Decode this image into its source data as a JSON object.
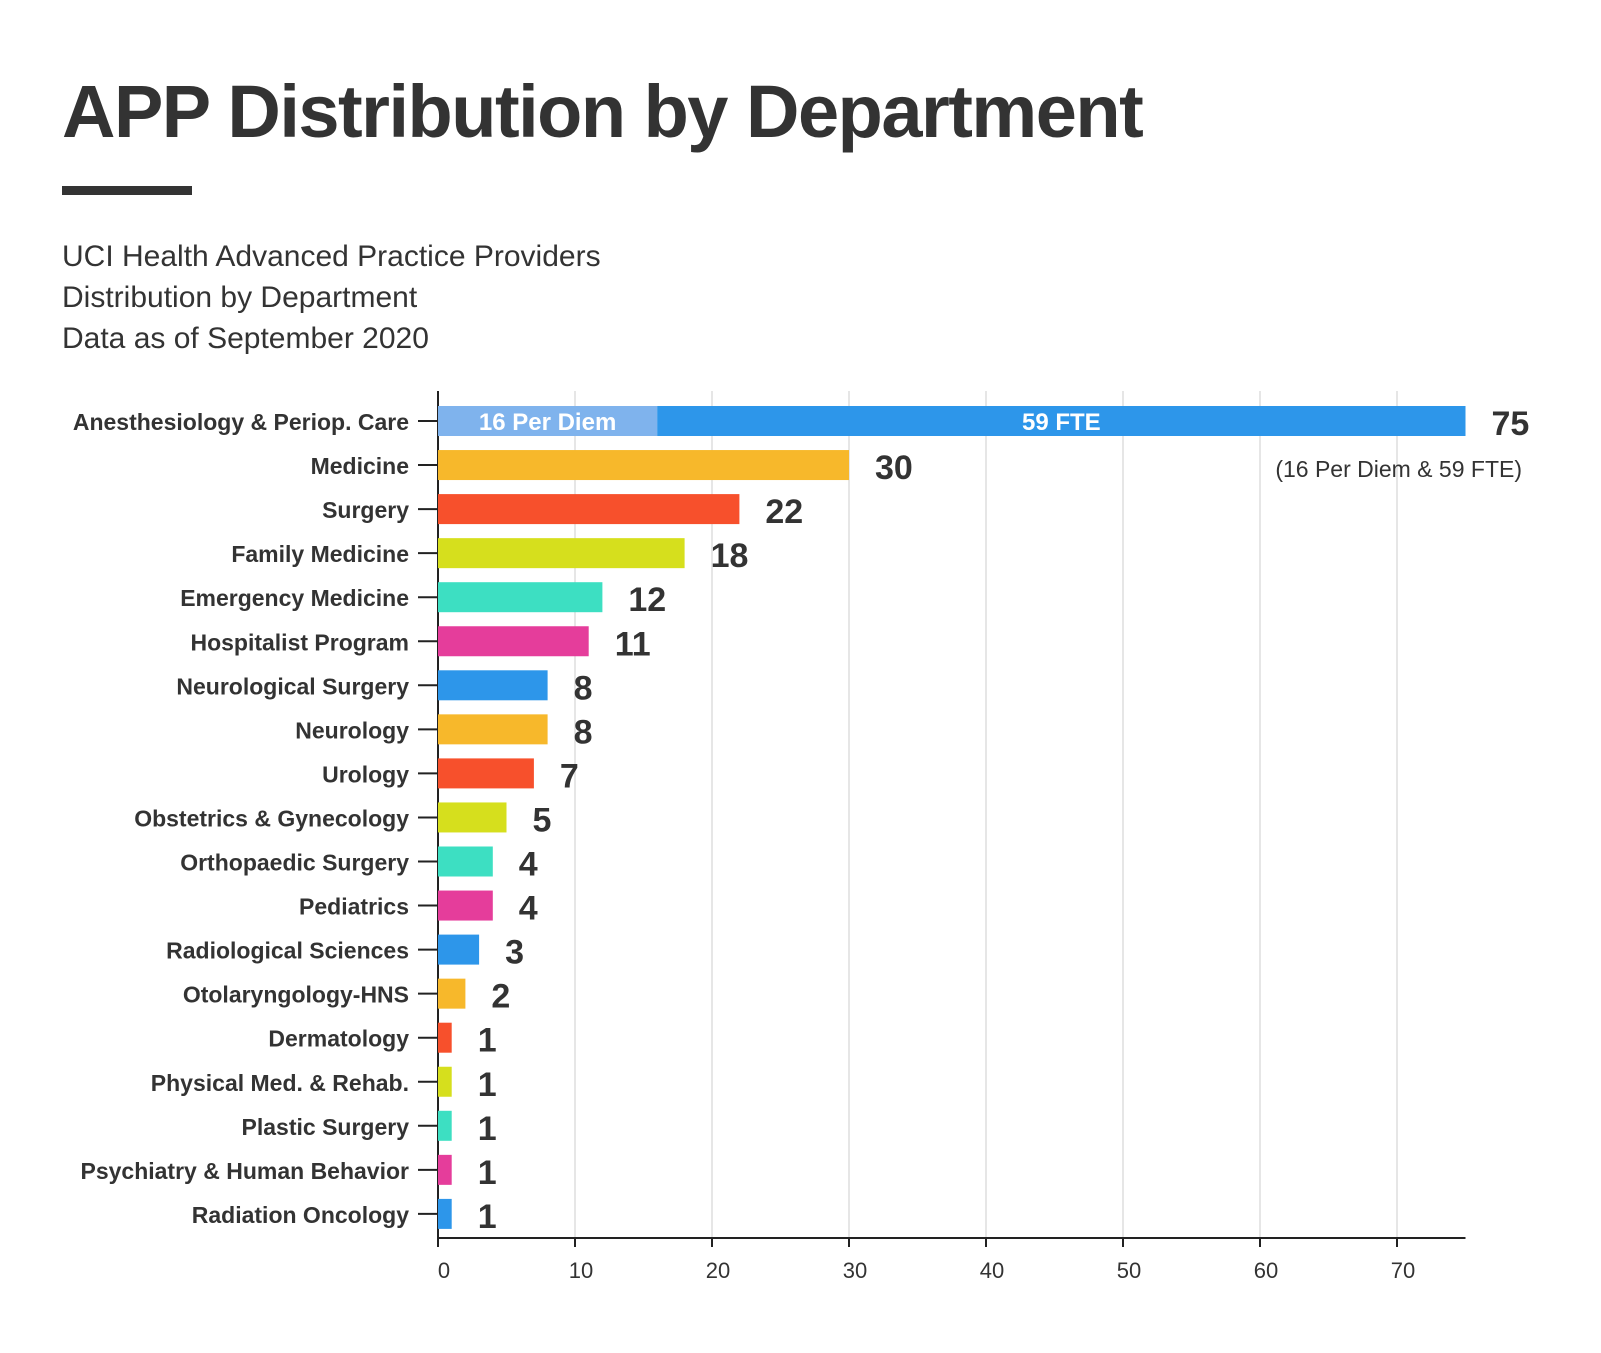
{
  "title": "APP Distribution by Department",
  "subtitle_lines": [
    "UCI Health Advanced Practice Providers",
    "Distribution by Department",
    "Data as of September 2020"
  ],
  "chart_data": {
    "type": "bar",
    "orientation": "horizontal",
    "categories": [
      "Anesthesiology & Periop. Care",
      "Medicine",
      "Surgery",
      "Family Medicine",
      "Emergency Medicine",
      "Hospitalist Program",
      "Neurological Surgery",
      "Neurology",
      "Urology",
      "Obstetrics & Gynecology",
      "Orthopaedic Surgery",
      "Pediatrics",
      "Radiological Sciences",
      "Otolaryngology-HNS",
      "Dermatology",
      "Physical Med. & Rehab.",
      "Plastic Surgery",
      "Psychiatry & Human Behavior",
      "Radiation Oncology"
    ],
    "values": [
      75,
      30,
      22,
      18,
      12,
      11,
      8,
      8,
      7,
      5,
      4,
      4,
      3,
      2,
      1,
      1,
      1,
      1,
      1
    ],
    "colors": [
      "#2d96ea",
      "#f7b82b",
      "#f7502c",
      "#d6df1d",
      "#3ddfc2",
      "#e53d9b"
    ],
    "segments": [
      {
        "category": "Anesthesiology & Periop. Care",
        "label": "16 Per Diem",
        "value": 16,
        "color": "#7fb3ed"
      },
      {
        "category": "Anesthesiology & Periop. Care",
        "label": "59 FTE",
        "value": 59,
        "color": "#2d96ea"
      }
    ],
    "annotation": "(16 Per Diem & 59 FTE)",
    "xticks": [
      0,
      10,
      20,
      30,
      40,
      50,
      60,
      70
    ],
    "xlim": [
      0,
      75
    ],
    "grid": true,
    "xlabel": "",
    "ylabel": ""
  }
}
